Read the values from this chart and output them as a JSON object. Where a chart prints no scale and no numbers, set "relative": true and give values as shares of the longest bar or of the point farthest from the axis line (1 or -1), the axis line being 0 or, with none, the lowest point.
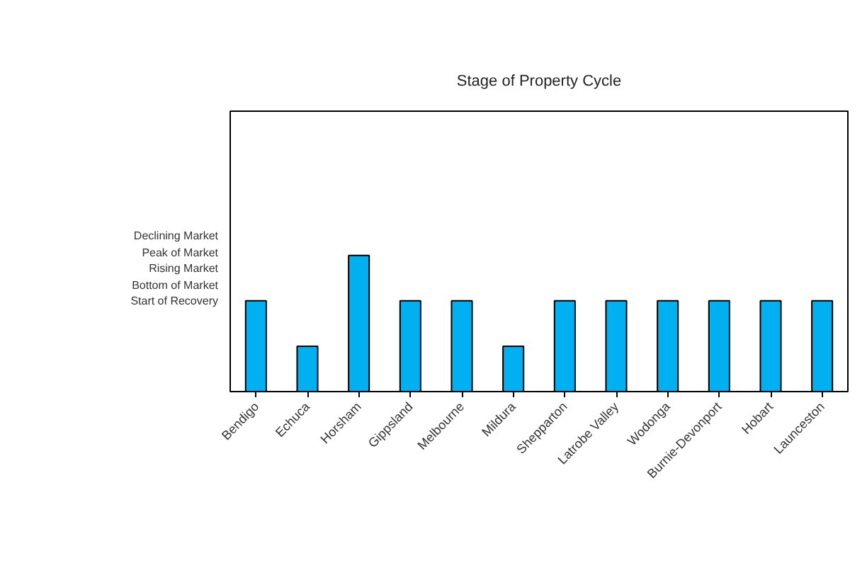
{
  "chart_data": {
    "type": "bar",
    "title": "Stage of Property Cycle",
    "relative": true,
    "categories": [
      "Bendigo",
      "Echuca",
      "Horsham",
      "Gippsland",
      "Melbourne",
      "Mildura",
      "Shepparton",
      "Latrobe Valley",
      "Wodonga",
      "Burnie-Devonport",
      "Hobart",
      "Launceston"
    ],
    "values": [
      0.667,
      0.333,
      1,
      0.667,
      0.667,
      0.333,
      0.667,
      0.667,
      0.667,
      0.667,
      0.667,
      0.667
    ],
    "color": "#00b0f0",
    "annotations": [
      "Declining Market",
      "Peak of Market",
      "Rising Market",
      "Bottom of Market",
      "Start of Recovery"
    ],
    "grid": false
  }
}
